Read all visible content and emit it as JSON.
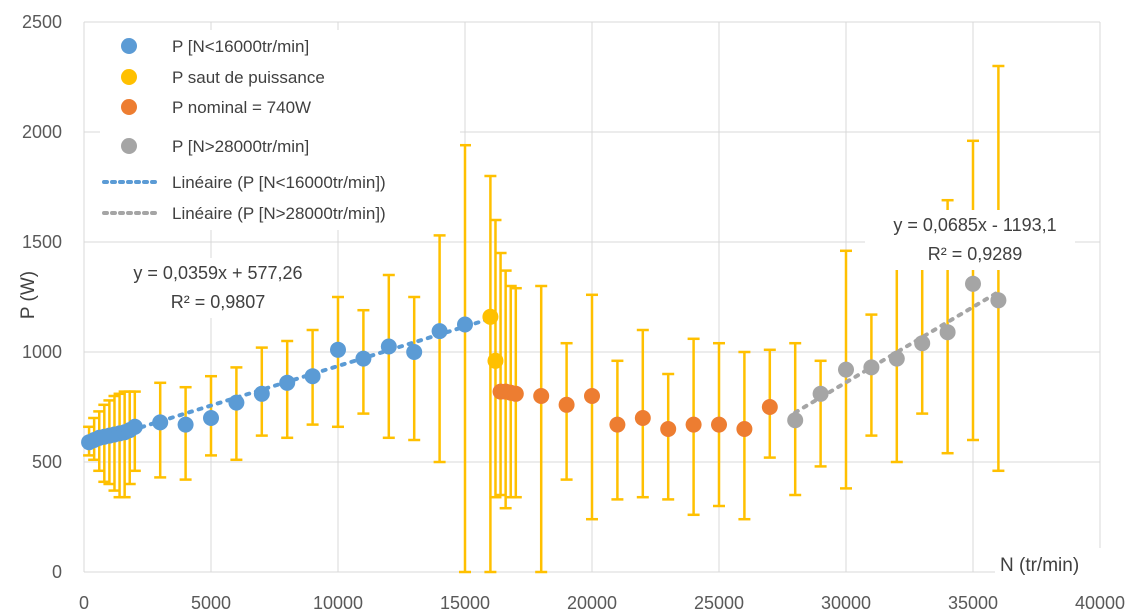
{
  "chart_data": {
    "type": "scatter",
    "xlabel": "N (tr/min)",
    "ylabel": "P (W)",
    "xlim": [
      0,
      40000
    ],
    "ylim": [
      0,
      2500
    ],
    "x_ticks": [
      "0",
      "5000",
      "10000",
      "15000",
      "20000",
      "25000",
      "30000",
      "35000",
      "40000"
    ],
    "y_ticks": [
      "0",
      "500",
      "1000",
      "1500",
      "2000",
      "2500"
    ],
    "grid": "on",
    "legend_position": "top-left",
    "colors": {
      "blue": "#5B9BD5",
      "yellow": "#FFC000",
      "orange": "#ED7D31",
      "gray": "#A5A5A5",
      "error_bars": "#FFC000",
      "grid": "#D9D9D9"
    },
    "series": [
      {
        "name": "P [N<16000tr/min]",
        "color": "#5B9BD5",
        "points": [
          {
            "x": 200,
            "y": 590,
            "lo": 530,
            "hi": 660
          },
          {
            "x": 400,
            "y": 600,
            "lo": 510,
            "hi": 700
          },
          {
            "x": 600,
            "y": 610,
            "lo": 460,
            "hi": 730
          },
          {
            "x": 800,
            "y": 615,
            "lo": 410,
            "hi": 760
          },
          {
            "x": 1000,
            "y": 620,
            "lo": 400,
            "hi": 780
          },
          {
            "x": 1200,
            "y": 625,
            "lo": 370,
            "hi": 800
          },
          {
            "x": 1400,
            "y": 630,
            "lo": 340,
            "hi": 810
          },
          {
            "x": 1600,
            "y": 635,
            "lo": 340,
            "hi": 820
          },
          {
            "x": 1800,
            "y": 645,
            "lo": 400,
            "hi": 820
          },
          {
            "x": 2000,
            "y": 660,
            "lo": 460,
            "hi": 820
          },
          {
            "x": 3000,
            "y": 680,
            "lo": 430,
            "hi": 860
          },
          {
            "x": 4000,
            "y": 670,
            "lo": 420,
            "hi": 840
          },
          {
            "x": 5000,
            "y": 700,
            "lo": 530,
            "hi": 890
          },
          {
            "x": 6000,
            "y": 770,
            "lo": 510,
            "hi": 930
          },
          {
            "x": 7000,
            "y": 810,
            "lo": 620,
            "hi": 1020
          },
          {
            "x": 8000,
            "y": 860,
            "lo": 610,
            "hi": 1050
          },
          {
            "x": 9000,
            "y": 890,
            "lo": 670,
            "hi": 1100
          },
          {
            "x": 10000,
            "y": 1010,
            "lo": 660,
            "hi": 1250
          },
          {
            "x": 11000,
            "y": 970,
            "lo": 720,
            "hi": 1190
          },
          {
            "x": 12000,
            "y": 1025,
            "lo": 610,
            "hi": 1350
          },
          {
            "x": 13000,
            "y": 1000,
            "lo": 600,
            "hi": 1250
          },
          {
            "x": 14000,
            "y": 1095,
            "lo": 500,
            "hi": 1530
          },
          {
            "x": 15000,
            "y": 1125,
            "lo": 0,
            "hi": 1940
          }
        ]
      },
      {
        "name": "P saut de puissance",
        "color": "#FFC000",
        "points": [
          {
            "x": 16000,
            "y": 1160,
            "lo": 0,
            "hi": 1800
          },
          {
            "x": 16200,
            "y": 960,
            "lo": 340,
            "hi": 1600
          }
        ]
      },
      {
        "name": "P nominal = 740W",
        "color": "#ED7D31",
        "points": [
          {
            "x": 16400,
            "y": 820,
            "lo": 350,
            "hi": 1450
          },
          {
            "x": 16600,
            "y": 820,
            "lo": 290,
            "hi": 1370
          },
          {
            "x": 16800,
            "y": 815,
            "lo": 340,
            "hi": 1300
          },
          {
            "x": 17000,
            "y": 810,
            "lo": 340,
            "hi": 1290
          },
          {
            "x": 18000,
            "y": 800,
            "lo": 0,
            "hi": 1300
          },
          {
            "x": 19000,
            "y": 760,
            "lo": 420,
            "hi": 1040
          },
          {
            "x": 20000,
            "y": 800,
            "lo": 240,
            "hi": 1260
          },
          {
            "x": 21000,
            "y": 670,
            "lo": 330,
            "hi": 960
          },
          {
            "x": 22000,
            "y": 700,
            "lo": 340,
            "hi": 1100
          },
          {
            "x": 23000,
            "y": 650,
            "lo": 330,
            "hi": 900
          },
          {
            "x": 24000,
            "y": 670,
            "lo": 260,
            "hi": 1060
          },
          {
            "x": 25000,
            "y": 670,
            "lo": 300,
            "hi": 1040
          },
          {
            "x": 26000,
            "y": 650,
            "lo": 240,
            "hi": 1000
          },
          {
            "x": 27000,
            "y": 750,
            "lo": 520,
            "hi": 1010
          }
        ]
      },
      {
        "name": "P [N>28000tr/min]",
        "color": "#A5A5A5",
        "points": [
          {
            "x": 28000,
            "y": 690,
            "lo": 350,
            "hi": 1040
          },
          {
            "x": 29000,
            "y": 810,
            "lo": 480,
            "hi": 960
          },
          {
            "x": 30000,
            "y": 920,
            "lo": 380,
            "hi": 1460
          },
          {
            "x": 31000,
            "y": 930,
            "lo": 620,
            "hi": 1170
          },
          {
            "x": 32000,
            "y": 970,
            "lo": 500,
            "hi": 1540
          },
          {
            "x": 33000,
            "y": 1040,
            "lo": 720,
            "hi": 1570
          },
          {
            "x": 34000,
            "y": 1090,
            "lo": 540,
            "hi": 1690
          },
          {
            "x": 35000,
            "y": 1310,
            "lo": 600,
            "hi": 1960
          },
          {
            "x": 36000,
            "y": 1235,
            "lo": 460,
            "hi": 2300
          }
        ]
      }
    ],
    "trendlines": [
      {
        "name": "Linéaire (P [N<16000tr/min])",
        "color": "#5B9BD5",
        "slope": 0.0359,
        "intercept": 577.26,
        "x_from": 0,
        "x_to": 16000,
        "equation": "y = 0,0359x + 577,26",
        "r2": "R² = 0,9807"
      },
      {
        "name": "Linéaire (P [N>28000tr/min])",
        "color": "#A5A5A5",
        "slope": 0.0685,
        "intercept": -1193.1,
        "x_from": 28000,
        "x_to": 36000,
        "equation": "y = 0,0685x - 1193,1",
        "r2": "R² = 0,9289"
      }
    ]
  }
}
